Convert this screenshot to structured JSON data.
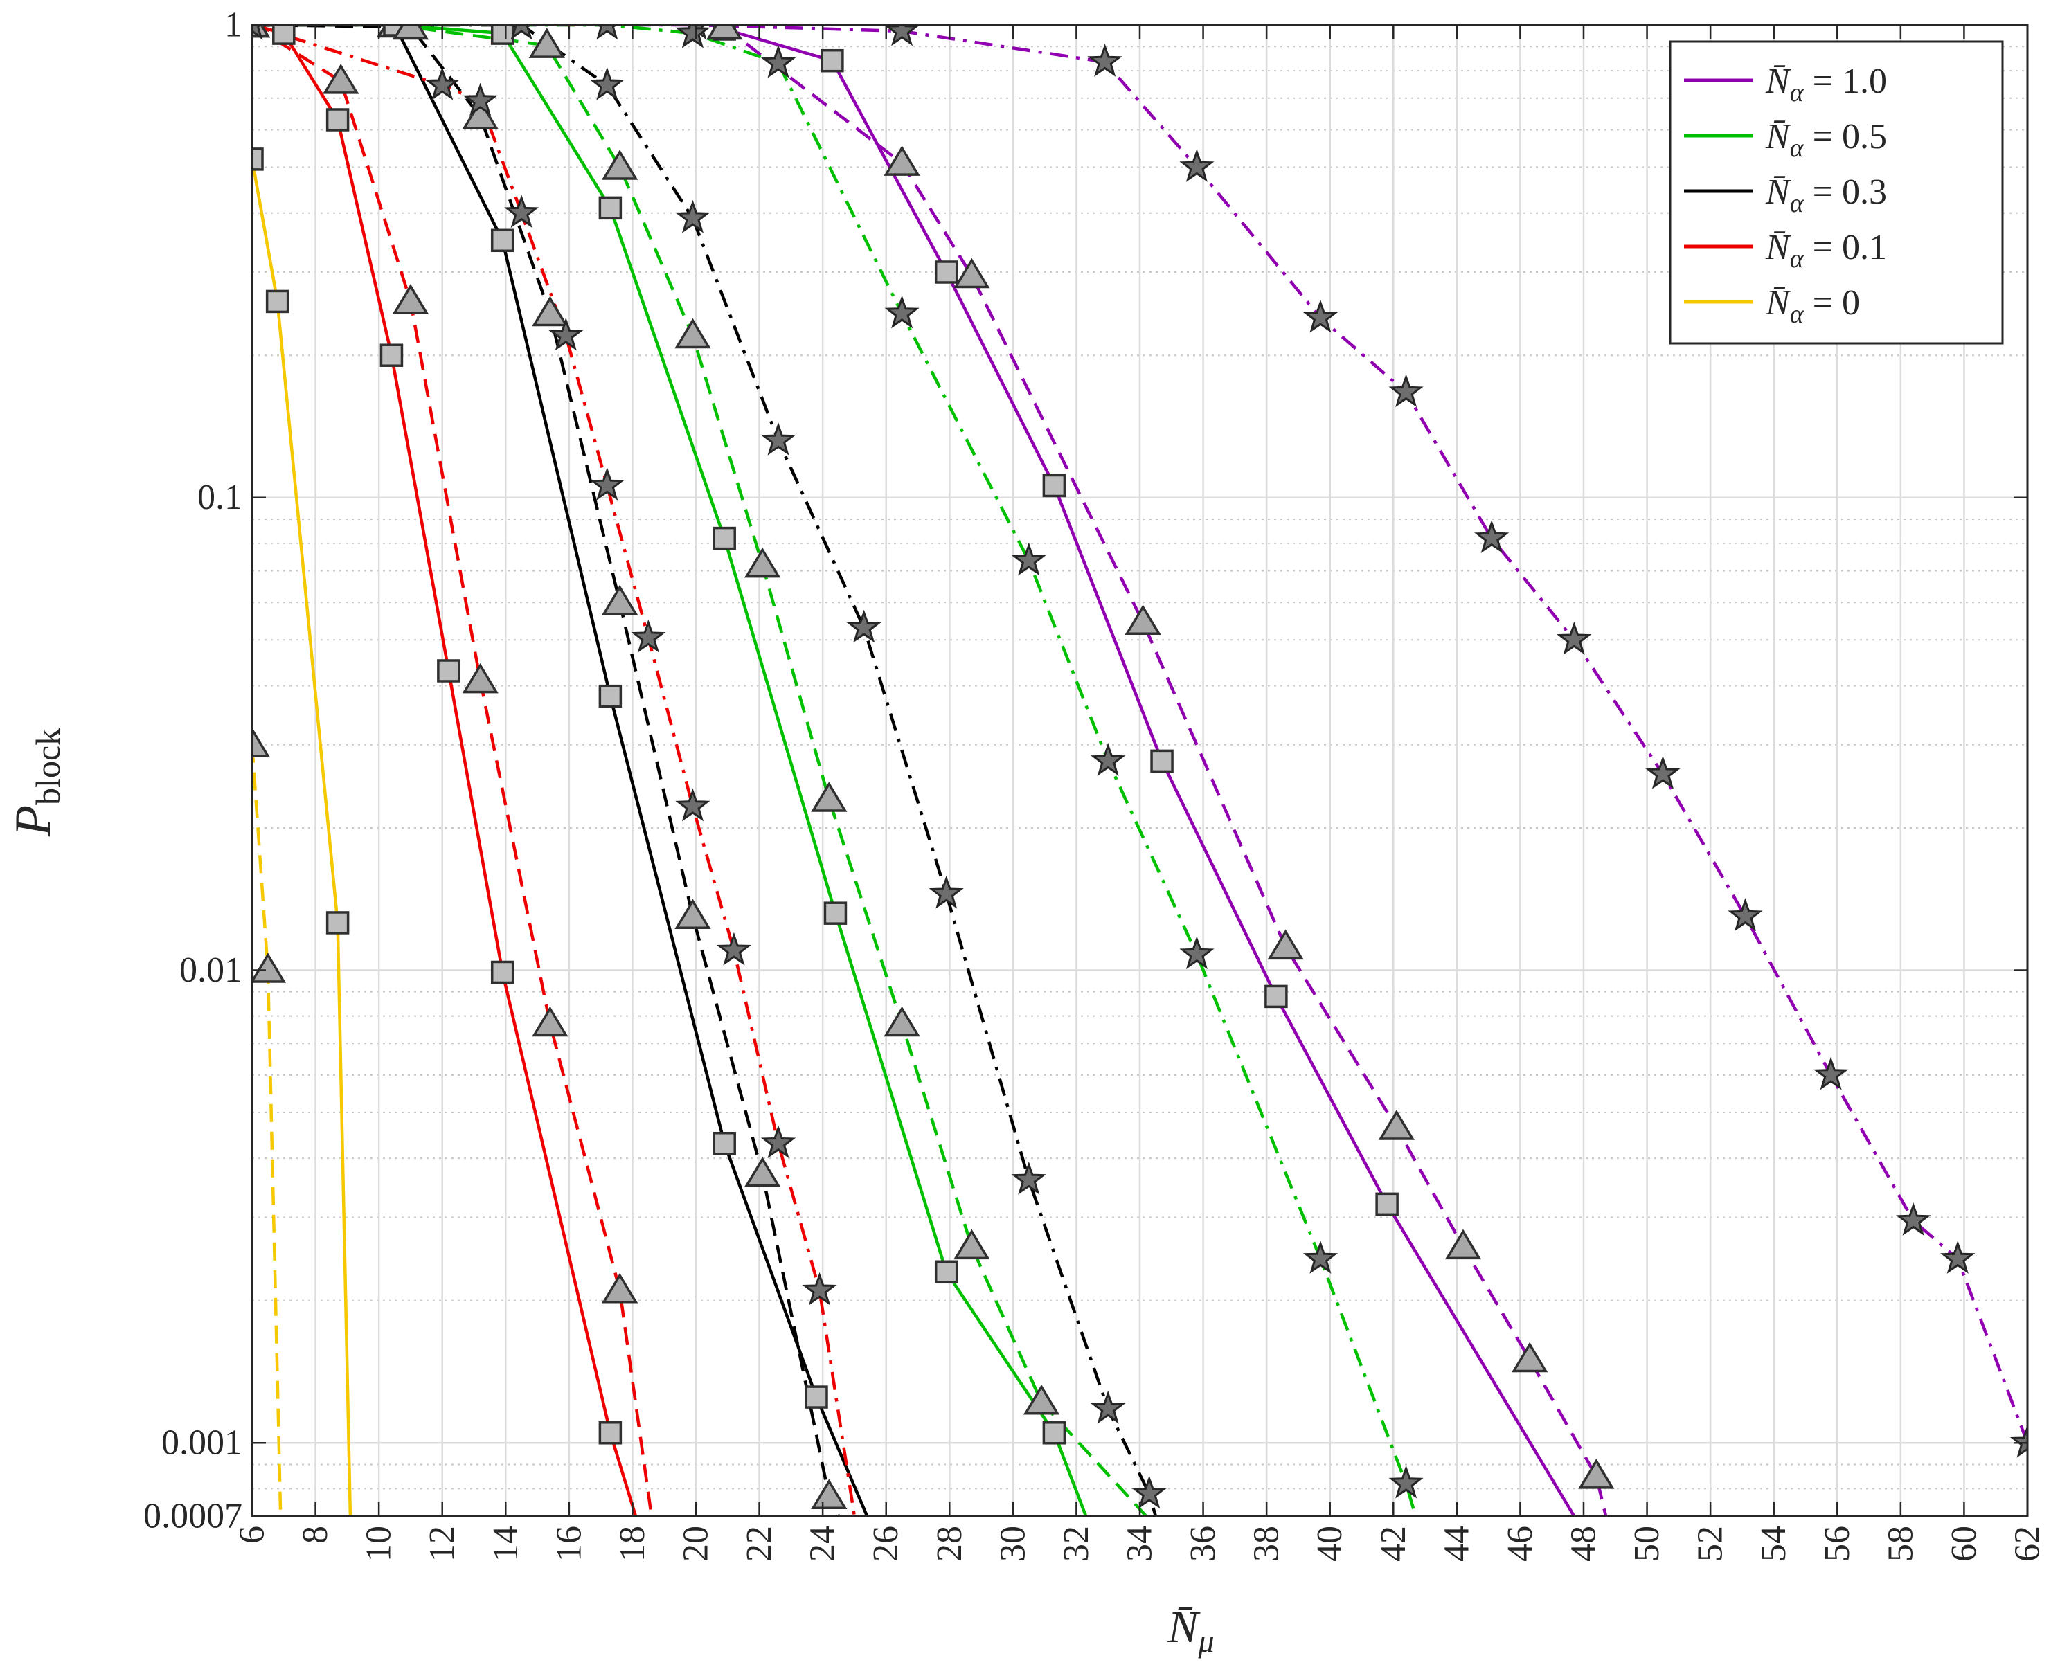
{
  "chart_data": {
    "type": "line",
    "title": "",
    "xlabel": "N̄",
    "xlabel_sub": "μ",
    "ylabel": "P",
    "ylabel_sub": "block",
    "y_scale": "log",
    "xlim": [
      6,
      62
    ],
    "ylim": [
      0.0007,
      1
    ],
    "x_ticks": [
      6,
      8,
      10,
      12,
      14,
      16,
      18,
      20,
      22,
      24,
      26,
      28,
      30,
      32,
      34,
      36,
      38,
      40,
      42,
      44,
      46,
      48,
      50,
      52,
      54,
      56,
      58,
      60,
      62
    ],
    "y_ticks": [
      0.0007,
      0.001,
      0.01,
      0.1,
      1
    ],
    "y_tick_labels": [
      "0.0007",
      "0.001",
      "0.01",
      "0.1",
      "1"
    ],
    "grid": true,
    "legend_position": "top-right",
    "legend": [
      {
        "label": "= 1.0",
        "color": "#9000b0"
      },
      {
        "label": "= 0.5",
        "color": "#00c000"
      },
      {
        "label": "= 0.3",
        "color": "#000000"
      },
      {
        "label": "= 0.1",
        "color": "#ee0000"
      },
      {
        "label": "= 0",
        "color": "#f5c800"
      }
    ],
    "legend_symbol": "N̄",
    "legend_symbol_sub": "α",
    "series": [
      {
        "group": "= 1.0",
        "color": "#9000b0",
        "line": "solid",
        "marker": "square",
        "points": [
          [
            20.9,
            0.98
          ],
          [
            24.3,
            0.84
          ],
          [
            27.9,
            0.3
          ],
          [
            31.3,
            0.106
          ],
          [
            34.7,
            0.0277
          ],
          [
            38.3,
            0.0088
          ],
          [
            41.8,
            0.0032
          ],
          [
            47.7,
            0.0007
          ]
        ]
      },
      {
        "group": "= 1.0",
        "color": "#9000b0",
        "line": "dashed",
        "marker": "triangle",
        "points": [
          [
            20.9,
            0.99
          ],
          [
            26.5,
            0.51
          ],
          [
            28.7,
            0.295
          ],
          [
            34.1,
            0.0545
          ],
          [
            38.6,
            0.0112
          ],
          [
            42.1,
            0.00465
          ],
          [
            44.2,
            0.0026
          ],
          [
            46.3,
            0.0015
          ],
          [
            48.4,
            0.00085
          ],
          [
            48.7,
            0.0007
          ]
        ]
      },
      {
        "group": "= 1.0",
        "color": "#9000b0",
        "line": "dashdot",
        "marker": "star",
        "points": [
          [
            6,
            1
          ],
          [
            20,
            1
          ],
          [
            26.5,
            0.97
          ],
          [
            32.9,
            0.835
          ],
          [
            35.8,
            0.5
          ],
          [
            39.7,
            0.24
          ],
          [
            42.4,
            0.167
          ],
          [
            45.1,
            0.082
          ],
          [
            47.7,
            0.05
          ],
          [
            50.5,
            0.026
          ],
          [
            53.1,
            0.013
          ],
          [
            55.8,
            0.006
          ],
          [
            58.4,
            0.00295
          ],
          [
            59.8,
            0.00245
          ],
          [
            62,
            0.001
          ]
        ]
      },
      {
        "group": "= 0.5",
        "color": "#00c000",
        "line": "solid",
        "marker": "square",
        "points": [
          [
            6,
            1
          ],
          [
            10.5,
            1
          ],
          [
            13.9,
            0.96
          ],
          [
            17.3,
            0.41
          ],
          [
            20.9,
            0.082
          ],
          [
            24.4,
            0.0132
          ],
          [
            27.9,
            0.0023
          ],
          [
            31.3,
            0.00105
          ],
          [
            32.3,
            0.0007
          ]
        ]
      },
      {
        "group": "= 0.5",
        "color": "#00c000",
        "line": "dashed",
        "marker": "triangle",
        "points": [
          [
            6,
            1
          ],
          [
            10.5,
            1
          ],
          [
            15.3,
            0.905
          ],
          [
            17.6,
            0.5
          ],
          [
            19.9,
            0.22
          ],
          [
            22.1,
            0.072
          ],
          [
            24.2,
            0.023
          ],
          [
            26.5,
            0.0077
          ],
          [
            28.7,
            0.0026
          ],
          [
            30.9,
            0.00122
          ],
          [
            34.2,
            0.0007
          ]
        ]
      },
      {
        "group": "= 0.5",
        "color": "#00c000",
        "line": "dashdot",
        "marker": "star",
        "points": [
          [
            6,
            1
          ],
          [
            17.2,
            1
          ],
          [
            19.9,
            0.96
          ],
          [
            22.6,
            0.83
          ],
          [
            26.5,
            0.245
          ],
          [
            30.5,
            0.0735
          ],
          [
            33,
            0.0277
          ],
          [
            35.8,
            0.0108
          ],
          [
            39.7,
            0.00245
          ],
          [
            42.4,
            0.00082
          ],
          [
            42.7,
            0.0007
          ]
        ]
      },
      {
        "group": "= 0.3",
        "color": "#000000",
        "line": "solid",
        "marker": "square",
        "points": [
          [
            6,
            1
          ],
          [
            10.5,
            1
          ],
          [
            13.9,
            0.35
          ],
          [
            17.3,
            0.038
          ],
          [
            20.9,
            0.0043
          ],
          [
            23.8,
            0.00125
          ],
          [
            25.4,
            0.0007
          ]
        ]
      },
      {
        "group": "= 0.3",
        "color": "#000000",
        "line": "dashed",
        "marker": "triangle",
        "points": [
          [
            6,
            1
          ],
          [
            11,
            0.99
          ],
          [
            13.2,
            0.64
          ],
          [
            15.4,
            0.245
          ],
          [
            17.6,
            0.06
          ],
          [
            19.9,
            0.013
          ],
          [
            22.1,
            0.0037
          ],
          [
            24.2,
            0.00077
          ],
          [
            24.5,
            0.0007
          ]
        ]
      },
      {
        "group": "= 0.3",
        "color": "#000000",
        "line": "dashdot",
        "marker": "star",
        "points": [
          [
            6,
            1
          ],
          [
            14.5,
            1
          ],
          [
            17.2,
            0.745
          ],
          [
            19.9,
            0.39
          ],
          [
            22.6,
            0.132
          ],
          [
            25.3,
            0.053
          ],
          [
            27.9,
            0.0145
          ],
          [
            30.5,
            0.0036
          ],
          [
            33,
            0.00118
          ],
          [
            34.3,
            0.00078
          ],
          [
            34.5,
            0.0007
          ]
        ]
      },
      {
        "group": "= 0.1",
        "color": "#ee0000",
        "line": "solid",
        "marker": "square",
        "points": [
          [
            6,
            1
          ],
          [
            7,
            0.96
          ],
          [
            8.7,
            0.63
          ],
          [
            10.4,
            0.2
          ],
          [
            12.2,
            0.043
          ],
          [
            13.9,
            0.0099
          ],
          [
            17.3,
            0.00105
          ],
          [
            18.1,
            0.0007
          ]
        ]
      },
      {
        "group": "= 0.1",
        "color": "#ee0000",
        "line": "dashed",
        "marker": "triangle",
        "points": [
          [
            6,
            1
          ],
          [
            8.8,
            0.76
          ],
          [
            11,
            0.26
          ],
          [
            13.2,
            0.041
          ],
          [
            15.4,
            0.0077
          ],
          [
            17.6,
            0.0021
          ],
          [
            18.6,
            0.0007
          ]
        ]
      },
      {
        "group": "= 0.1",
        "color": "#ee0000",
        "line": "dashdot",
        "marker": "star",
        "points": [
          [
            6,
            1
          ],
          [
            12,
            0.745
          ],
          [
            13.2,
            0.69
          ],
          [
            14.5,
            0.4
          ],
          [
            15.9,
            0.22
          ],
          [
            17.2,
            0.106
          ],
          [
            18.5,
            0.0505
          ],
          [
            19.9,
            0.0222
          ],
          [
            21.2,
            0.011
          ],
          [
            22.6,
            0.0043
          ],
          [
            23.9,
            0.0021
          ],
          [
            25,
            0.0007
          ]
        ]
      },
      {
        "group": "= 0",
        "color": "#f5c800",
        "line": "solid",
        "marker": "square",
        "points": [
          [
            6,
            0.52
          ],
          [
            6.8,
            0.26
          ],
          [
            8.7,
            0.0126
          ],
          [
            9.1,
            0.0007
          ]
        ]
      },
      {
        "group": "= 0",
        "color": "#f5c800",
        "line": "dashed",
        "marker": "triangle",
        "points": [
          [
            6,
            0.03
          ],
          [
            6.5,
            0.01
          ],
          [
            6.9,
            0.0007
          ]
        ]
      }
    ]
  }
}
